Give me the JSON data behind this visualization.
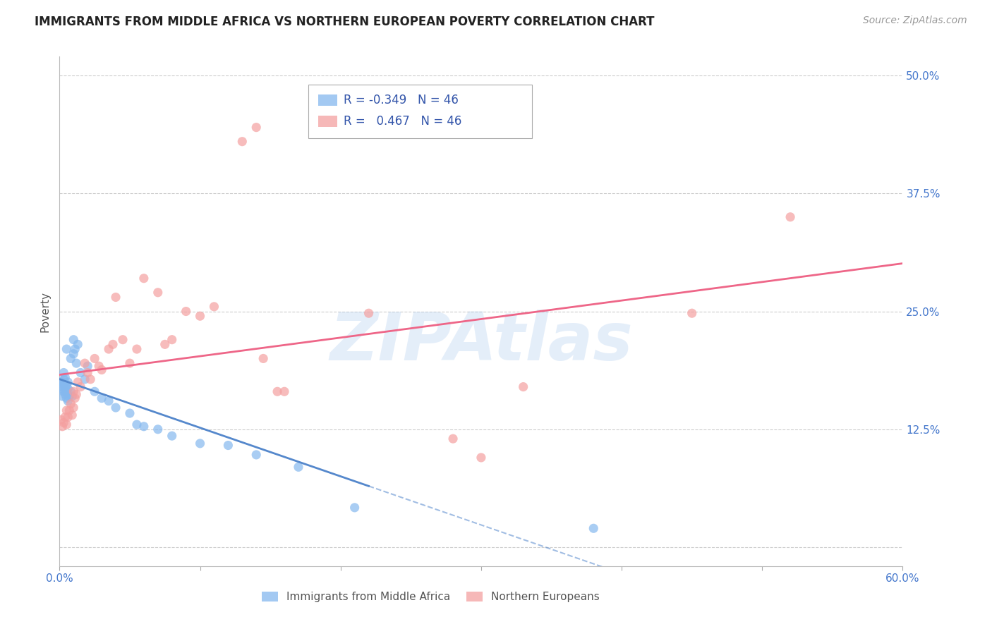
{
  "title": "IMMIGRANTS FROM MIDDLE AFRICA VS NORTHERN EUROPEAN POVERTY CORRELATION CHART",
  "source": "Source: ZipAtlas.com",
  "ylabel": "Poverty",
  "xlim": [
    0.0,
    0.6
  ],
  "ylim": [
    -0.02,
    0.52
  ],
  "ytick_vals": [
    0.0,
    0.125,
    0.25,
    0.375,
    0.5
  ],
  "yticklabels_right": [
    "",
    "12.5%",
    "25.0%",
    "37.5%",
    "50.0%"
  ],
  "xtick_vals": [
    0.0,
    0.1,
    0.2,
    0.3,
    0.4,
    0.5,
    0.6
  ],
  "xtick_show": [
    "0.0%",
    "",
    "",
    "",
    "",
    "",
    "60.0%"
  ],
  "grid_color": "#cccccc",
  "background_color": "#ffffff",
  "blue_color": "#85B8EE",
  "pink_color": "#F4A0A0",
  "blue_line_color": "#5588CC",
  "pink_line_color": "#EE6688",
  "watermark": "ZIPAtlas",
  "legend_R_blue": "-0.349",
  "legend_R_pink": "0.467",
  "legend_N": "46",
  "blue_x": [
    0.001,
    0.001,
    0.002,
    0.002,
    0.002,
    0.003,
    0.003,
    0.003,
    0.003,
    0.004,
    0.004,
    0.004,
    0.005,
    0.005,
    0.005,
    0.005,
    0.006,
    0.006,
    0.006,
    0.007,
    0.008,
    0.008,
    0.009,
    0.01,
    0.01,
    0.011,
    0.012,
    0.013,
    0.015,
    0.018,
    0.02,
    0.025,
    0.03,
    0.035,
    0.04,
    0.05,
    0.055,
    0.06,
    0.07,
    0.08,
    0.1,
    0.12,
    0.14,
    0.17,
    0.21,
    0.38
  ],
  "blue_y": [
    0.17,
    0.175,
    0.16,
    0.168,
    0.175,
    0.165,
    0.172,
    0.178,
    0.185,
    0.162,
    0.17,
    0.18,
    0.158,
    0.165,
    0.172,
    0.21,
    0.155,
    0.168,
    0.175,
    0.16,
    0.165,
    0.2,
    0.16,
    0.205,
    0.22,
    0.21,
    0.195,
    0.215,
    0.185,
    0.178,
    0.192,
    0.165,
    0.158,
    0.155,
    0.148,
    0.142,
    0.13,
    0.128,
    0.125,
    0.118,
    0.11,
    0.108,
    0.098,
    0.085,
    0.042,
    0.02
  ],
  "pink_x": [
    0.001,
    0.002,
    0.003,
    0.004,
    0.005,
    0.005,
    0.006,
    0.007,
    0.008,
    0.009,
    0.01,
    0.01,
    0.011,
    0.012,
    0.013,
    0.015,
    0.018,
    0.02,
    0.022,
    0.025,
    0.028,
    0.03,
    0.035,
    0.038,
    0.04,
    0.045,
    0.05,
    0.055,
    0.06,
    0.07,
    0.075,
    0.08,
    0.09,
    0.1,
    0.11,
    0.13,
    0.14,
    0.145,
    0.155,
    0.16,
    0.22,
    0.28,
    0.3,
    0.33,
    0.45,
    0.52
  ],
  "pink_y": [
    0.135,
    0.128,
    0.132,
    0.138,
    0.13,
    0.145,
    0.138,
    0.145,
    0.152,
    0.14,
    0.148,
    0.165,
    0.158,
    0.162,
    0.175,
    0.17,
    0.195,
    0.185,
    0.178,
    0.2,
    0.192,
    0.188,
    0.21,
    0.215,
    0.265,
    0.22,
    0.195,
    0.21,
    0.285,
    0.27,
    0.215,
    0.22,
    0.25,
    0.245,
    0.255,
    0.43,
    0.445,
    0.2,
    0.165,
    0.165,
    0.248,
    0.115,
    0.095,
    0.17,
    0.248,
    0.35
  ]
}
